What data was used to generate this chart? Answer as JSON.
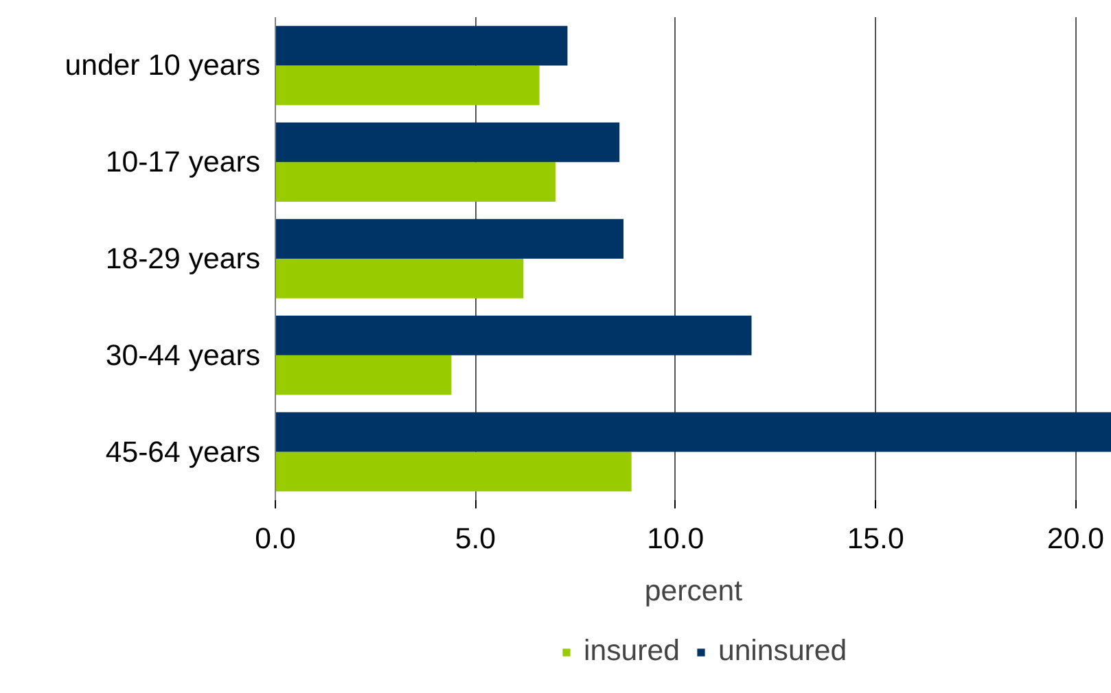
{
  "chart_data": {
    "type": "bar",
    "orientation": "horizontal",
    "xlabel": "percent",
    "categories": [
      "under 10 years",
      "10-17 years",
      "18-29 years",
      "30-44 years",
      "45-64 years"
    ],
    "series": [
      {
        "name": "insured",
        "color": "#99cc00",
        "values": [
          6.6,
          7.0,
          6.2,
          4.4,
          8.9
        ]
      },
      {
        "name": "uninsured",
        "color": "#003366",
        "values": [
          7.3,
          8.6,
          8.7,
          11.9,
          20.9
        ]
      }
    ],
    "xlim": [
      0,
      20.9
    ],
    "xticks": [
      {
        "value": 0,
        "label": "0.0"
      },
      {
        "value": 5,
        "label": "5.0"
      },
      {
        "value": 10,
        "label": "10.0"
      },
      {
        "value": 15,
        "label": "15.0"
      },
      {
        "value": 20,
        "label": "20.0"
      }
    ],
    "grid": "x",
    "legend": "bottom"
  }
}
